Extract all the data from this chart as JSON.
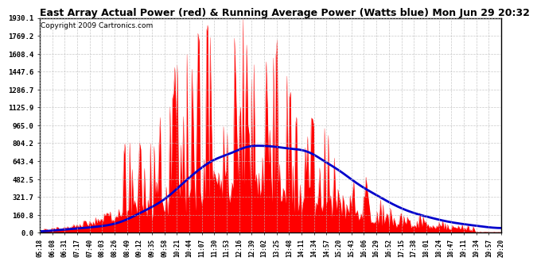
{
  "title": "East Array Actual Power (red) & Running Average Power (Watts blue) Mon Jun 29 20:32",
  "copyright": "Copyright 2009 Cartronics.com",
  "yticks": [
    0.0,
    160.8,
    321.7,
    482.5,
    643.4,
    804.2,
    965.0,
    1125.9,
    1286.7,
    1447.6,
    1608.4,
    1769.2,
    1930.1
  ],
  "ymax": 1930.1,
  "ymin": 0.0,
  "background_color": "#ffffff",
  "grid_color": "#bbbbbb",
  "bar_color": "#ff0000",
  "avg_color": "#0000cc",
  "title_fontsize": 9,
  "copyright_fontsize": 6.5,
  "xtick_labels": [
    "05:18",
    "06:08",
    "06:31",
    "07:17",
    "07:40",
    "08:03",
    "08:26",
    "08:49",
    "09:12",
    "09:35",
    "09:58",
    "10:21",
    "10:44",
    "11:07",
    "11:30",
    "11:53",
    "12:16",
    "12:39",
    "13:02",
    "13:25",
    "13:48",
    "14:11",
    "14:34",
    "14:57",
    "15:20",
    "15:43",
    "16:06",
    "16:29",
    "16:52",
    "17:15",
    "17:38",
    "18:01",
    "18:24",
    "18:47",
    "19:11",
    "19:34",
    "19:57",
    "20:20"
  ]
}
